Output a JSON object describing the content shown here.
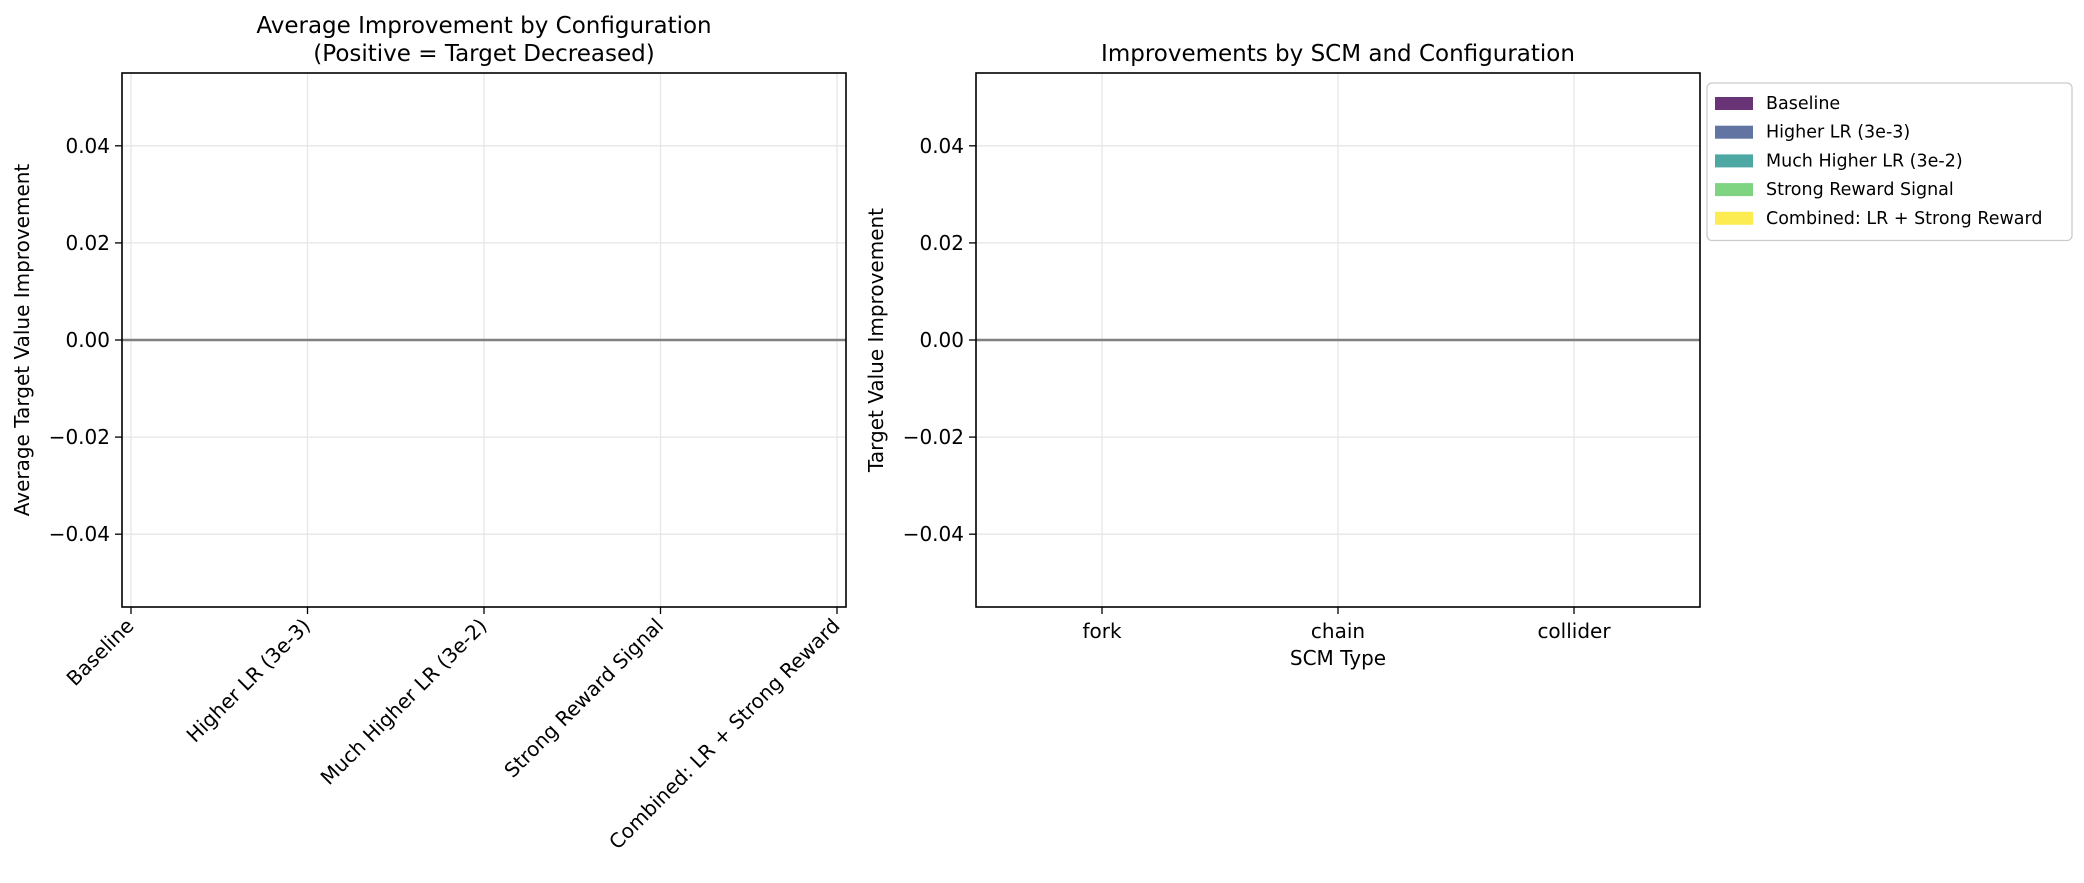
{
  "chart_data": [
    {
      "type": "bar",
      "title": "Average Improvement by Configuration\n(Positive = Target Decreased)",
      "xlabel": "",
      "ylabel": "Average Target Value Improvement",
      "categories": [
        "Baseline",
        "Higher LR (3e-3)",
        "Much Higher LR (3e-2)",
        "Strong Reward Signal",
        "Combined: LR + Strong Reward"
      ],
      "values": [
        0,
        0,
        0,
        0,
        0
      ],
      "ylim": [
        -0.055,
        0.055
      ],
      "yticks": [
        -0.04,
        -0.02,
        0.0,
        0.02,
        0.04
      ],
      "ytick_labels": [
        "−0.04",
        "−0.02",
        "0.00",
        "0.02",
        "0.04"
      ],
      "grid": true,
      "reference_line": 0
    },
    {
      "type": "bar",
      "title": "Improvements by SCM and Configuration",
      "xlabel": "SCM Type",
      "ylabel": "Target Value Improvement",
      "categories": [
        "fork",
        "chain",
        "collider"
      ],
      "series": [
        {
          "name": "Baseline",
          "color": "#440154",
          "values": [
            0,
            0,
            0
          ]
        },
        {
          "name": "Higher LR (3e-3)",
          "color": "#3b528b",
          "values": [
            0,
            0,
            0
          ]
        },
        {
          "name": "Much Higher LR (3e-2)",
          "color": "#21918c",
          "values": [
            0,
            0,
            0
          ]
        },
        {
          "name": "Strong Reward Signal",
          "color": "#5ec962",
          "values": [
            0,
            0,
            0
          ]
        },
        {
          "name": "Combined: LR + Strong Reward",
          "color": "#fde725",
          "values": [
            0,
            0,
            0
          ]
        }
      ],
      "ylim": [
        -0.055,
        0.055
      ],
      "yticks": [
        -0.04,
        -0.02,
        0.0,
        0.02,
        0.04
      ],
      "ytick_labels": [
        "−0.04",
        "−0.02",
        "0.00",
        "0.02",
        "0.04"
      ],
      "grid": true,
      "legend_position": "outside-upper-right",
      "reference_line": 0
    }
  ]
}
